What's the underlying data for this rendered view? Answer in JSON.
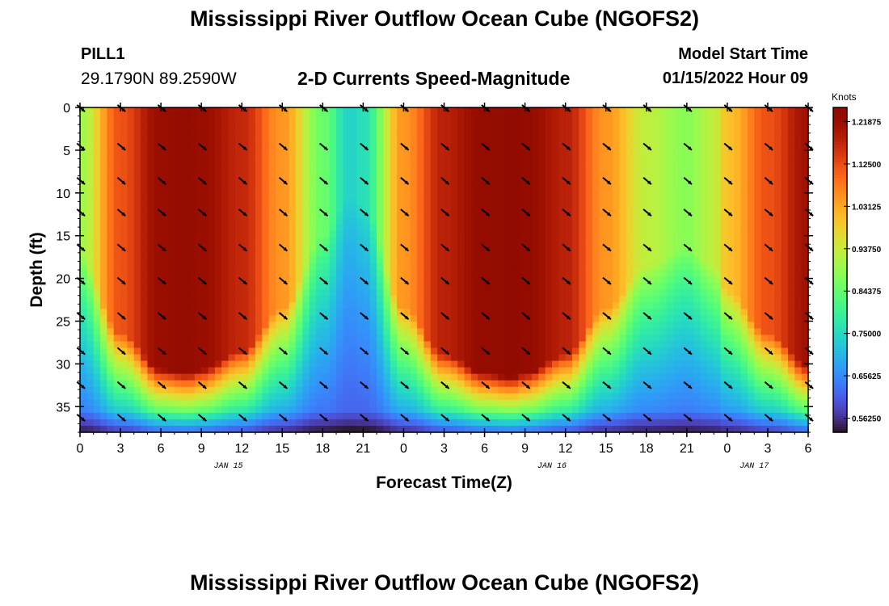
{
  "header": {
    "title": "Mississippi River Outflow Ocean Cube (NGOFS2)",
    "station": "PILL1",
    "coords": "29.1790N  89.2590W",
    "plot_title": "2-D Currents Speed-Magnitude",
    "model_start_label": "Model Start Time",
    "model_start_time": "01/15/2022 Hour 09"
  },
  "footer": {
    "title": "Mississippi River Outflow Ocean Cube (NGOFS2)"
  },
  "chart_data": {
    "type": "heatmap",
    "xlabel": "Forecast Time(Z)",
    "ylabel": "Depth (ft)",
    "x_ticks": [
      "0",
      "3",
      "6",
      "9",
      "12",
      "15",
      "18",
      "21",
      "0",
      "3",
      "6",
      "9",
      "12",
      "15",
      "18",
      "21",
      "0",
      "3",
      "6"
    ],
    "x_range_hours": [
      0,
      54
    ],
    "date_labels": [
      {
        "label": "JAN 15",
        "hour": 11
      },
      {
        "label": "JAN 16",
        "hour": 35
      },
      {
        "label": "JAN 17",
        "hour": 50
      }
    ],
    "y_ticks": [
      0,
      5,
      10,
      15,
      20,
      25,
      30,
      35
    ],
    "ylim": [
      0,
      38
    ],
    "y_inverted": true,
    "colorbar": {
      "label": "Knots",
      "min": 0.53125,
      "max": 1.25,
      "tick_labels": [
        "1.21875",
        "1.12500",
        "1.03125",
        "0.93750",
        "0.84375",
        "0.75000",
        "0.65625",
        "0.56250"
      ],
      "tick_values": [
        1.21875,
        1.125,
        1.03125,
        0.9375,
        0.84375,
        0.75,
        0.65625,
        0.5625
      ]
    },
    "speed_profile": {
      "description_hours": [
        0,
        3,
        6,
        8,
        9,
        12,
        15,
        18,
        20,
        21,
        24,
        27,
        30,
        32,
        33,
        36,
        39,
        42,
        45,
        47,
        48,
        51,
        54
      ],
      "surface_speed": [
        0.9,
        1.12,
        1.22,
        1.23,
        1.22,
        1.17,
        1.05,
        0.85,
        0.74,
        0.76,
        1.05,
        1.18,
        1.23,
        1.24,
        1.23,
        1.18,
        1.05,
        0.93,
        0.88,
        0.93,
        1.0,
        1.12,
        1.21
      ]
    },
    "arrow_hours": [
      0,
      3,
      6,
      9,
      12,
      15,
      18,
      21,
      24,
      27,
      30,
      33,
      36,
      39,
      42,
      45,
      48,
      51,
      54
    ],
    "arrow_depths": [
      0,
      4.5,
      8.5,
      12.2,
      16.3,
      20.2,
      24.3,
      28.4,
      32.4,
      36.2
    ],
    "arrow_direction_deg": 130
  }
}
